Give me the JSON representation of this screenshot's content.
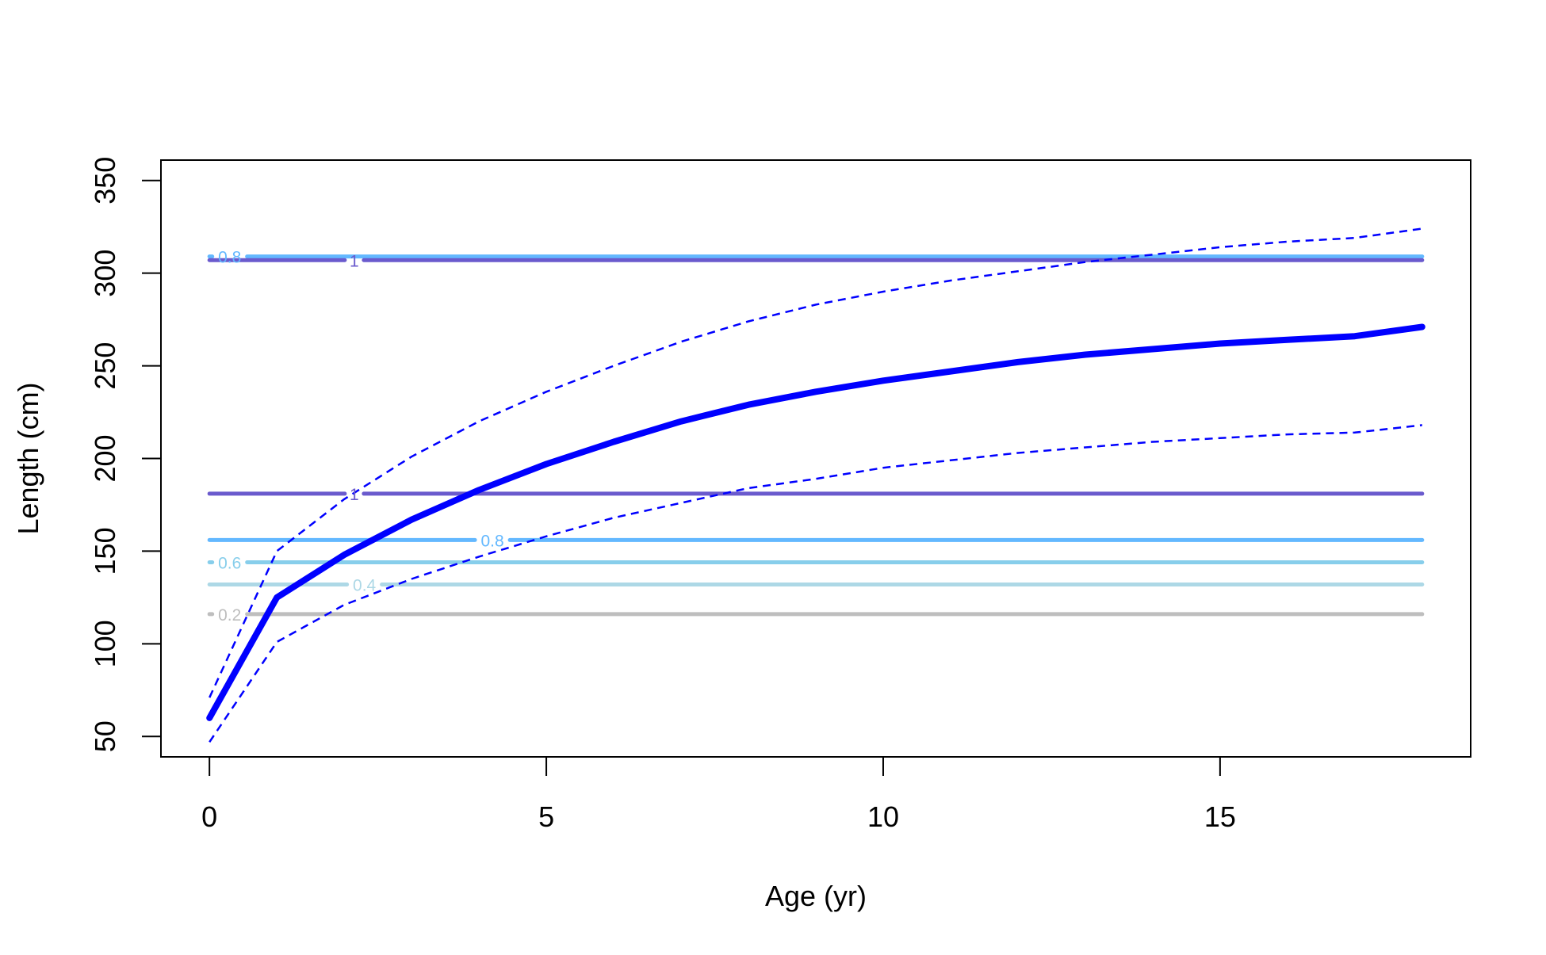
{
  "chart_data": {
    "type": "line",
    "xlabel": "Age (yr)",
    "ylabel": "Length (cm)",
    "xlim": [
      -0.72,
      18.72
    ],
    "ylim": [
      39,
      361
    ],
    "x_ticks": [
      0,
      5,
      10,
      15
    ],
    "y_ticks": [
      50,
      100,
      150,
      200,
      250,
      300,
      350
    ],
    "x_tick_labels": [
      "0",
      "5",
      "10",
      "15"
    ],
    "y_tick_labels": [
      "50",
      "100",
      "150",
      "200",
      "250",
      "300",
      "350"
    ],
    "grid": false,
    "legend": "none",
    "series": [
      {
        "role": "mean",
        "color": "#0000ff",
        "style": "solid-thick",
        "x": [
          0,
          1,
          2,
          3,
          4,
          5,
          6,
          7,
          8,
          9,
          10,
          11,
          12,
          13,
          14,
          15,
          16,
          17,
          18
        ],
        "y": [
          60,
          125,
          148,
          167,
          183,
          197,
          209,
          220,
          229,
          236,
          242,
          247,
          252,
          256,
          259,
          262,
          264,
          266,
          271
        ]
      },
      {
        "role": "upper-bound",
        "color": "#0000ff",
        "style": "dashed",
        "x": [
          0,
          1,
          2,
          3,
          4,
          5,
          6,
          7,
          8,
          9,
          10,
          11,
          12,
          13,
          14,
          15,
          16,
          17,
          18
        ],
        "y": [
          71,
          150,
          178,
          201,
          220,
          236,
          250,
          263,
          274,
          283,
          290,
          296,
          301,
          306,
          310,
          314,
          317,
          319,
          324
        ]
      },
      {
        "role": "lower-bound",
        "color": "#0000ff",
        "style": "dashed",
        "x": [
          0,
          1,
          2,
          3,
          4,
          5,
          6,
          7,
          8,
          9,
          10,
          11,
          12,
          13,
          14,
          15,
          16,
          17,
          18
        ],
        "y": [
          47,
          101,
          121,
          135,
          147,
          158,
          168,
          176,
          184,
          189,
          195,
          199,
          203,
          206,
          209,
          211,
          213,
          214,
          218
        ]
      }
    ],
    "contour_lines": [
      {
        "label": "0.2",
        "y": 116,
        "x_start": 0,
        "x_end": 18,
        "label_x": 0.3,
        "color": "#bebebe"
      },
      {
        "label": "0.4",
        "y": 132,
        "x_start": 0,
        "x_end": 18,
        "label_x": 2.3,
        "color": "#add8e6"
      },
      {
        "label": "0.6",
        "y": 144,
        "x_start": 0,
        "x_end": 18,
        "label_x": 0.3,
        "color": "#87ceeb"
      },
      {
        "label": "0.8",
        "y": 156,
        "x_start": 0,
        "x_end": 18,
        "label_x": 4.2,
        "color": "#63b8ff"
      },
      {
        "label": "1",
        "y": 181,
        "x_start": 0,
        "x_end": 18,
        "label_x": 2.15,
        "color": "#6a5acd"
      },
      {
        "label": "0.8",
        "y": 309,
        "x_start": 0,
        "x_end": 18,
        "label_x": 0.3,
        "color": "#63b8ff"
      },
      {
        "label": "1",
        "y": 307,
        "x_start": 0,
        "x_end": 18,
        "label_x": 2.15,
        "color": "#6a5acd"
      }
    ]
  }
}
